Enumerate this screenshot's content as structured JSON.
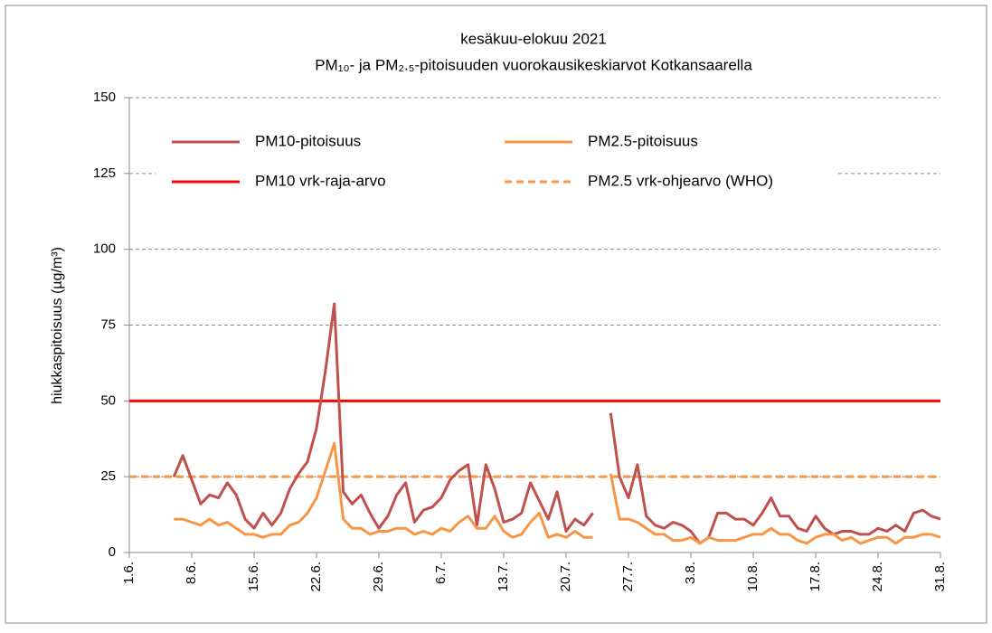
{
  "chart_data": {
    "type": "line",
    "title": "kesäkuu-elokuu 2021",
    "subtitle": "PM₁₀- ja PM₂.₅-pitoisuuden vuorokausikeskiarvot Kotkansaarella",
    "y_label": "hiukkaspitoisuus (µg/m³)",
    "categories": [
      "1.6.",
      null,
      null,
      null,
      null,
      null,
      null,
      "8.6.",
      null,
      null,
      null,
      null,
      null,
      null,
      "15.6.",
      null,
      null,
      null,
      null,
      null,
      null,
      "22.6.",
      null,
      null,
      null,
      null,
      null,
      null,
      "29.6.",
      null,
      null,
      null,
      null,
      null,
      null,
      "6.7.",
      null,
      null,
      null,
      null,
      null,
      null,
      "13.7.",
      null,
      null,
      null,
      null,
      null,
      null,
      "20.7.",
      null,
      null,
      null,
      null,
      null,
      null,
      "27.7.",
      null,
      null,
      null,
      null,
      null,
      null,
      "3.8.",
      null,
      null,
      null,
      null,
      null,
      null,
      "10.8.",
      null,
      null,
      null,
      null,
      null,
      null,
      "17.8.",
      null,
      null,
      null,
      null,
      null,
      null,
      "24.8.",
      null,
      null,
      null,
      null,
      null,
      null,
      "31.8."
    ],
    "series": [
      {
        "name": "PM10-pitoisuus",
        "color": "#c0504d",
        "values": [
          null,
          null,
          null,
          null,
          null,
          25,
          32,
          24,
          16,
          19,
          18,
          23,
          19,
          11,
          8,
          13,
          9,
          13,
          21,
          26,
          30,
          41,
          60,
          82,
          20,
          16,
          19,
          13,
          8,
          12,
          19,
          23,
          10,
          14,
          15,
          18,
          24,
          27,
          29,
          9,
          29,
          21,
          10,
          11,
          13,
          23,
          17,
          11,
          20,
          7,
          11,
          9,
          13,
          null,
          46,
          25,
          18,
          29,
          12,
          9,
          8,
          10,
          9,
          7,
          3,
          5,
          13,
          13,
          11,
          11,
          9,
          13,
          18,
          12,
          12,
          8,
          7,
          12,
          8,
          6,
          7,
          7,
          6,
          6,
          8,
          7,
          9,
          7,
          13,
          14,
          12,
          11
        ]
      },
      {
        "name": "PM2.5-pitoisuus",
        "color": "#f79646",
        "values": [
          null,
          null,
          null,
          null,
          null,
          11,
          11,
          10,
          9,
          11,
          9,
          10,
          8,
          6,
          6,
          5,
          6,
          6,
          9,
          10,
          13,
          18,
          27,
          36,
          11,
          8,
          8,
          6,
          7,
          7,
          8,
          8,
          6,
          7,
          6,
          8,
          7,
          10,
          12,
          8,
          8,
          12,
          7,
          5,
          6,
          10,
          13,
          5,
          6,
          5,
          7,
          5,
          5,
          null,
          26,
          11,
          11,
          10,
          8,
          6,
          6,
          4,
          4,
          5,
          3,
          5,
          4,
          4,
          4,
          5,
          6,
          6,
          8,
          6,
          6,
          4,
          3,
          5,
          6,
          6,
          4,
          5,
          3,
          4,
          5,
          5,
          3,
          5,
          5,
          6,
          6,
          5
        ]
      }
    ],
    "reference_lines": [
      {
        "name": "PM10 vrk-raja-arvo",
        "value": 50,
        "color": "#ff0000",
        "dashed": false
      },
      {
        "name": "PM2.5 vrk-ohjearvo (WHO)",
        "value": 25,
        "color": "#f79646",
        "dashed": true
      }
    ],
    "ylim": [
      0,
      150
    ],
    "yticks": [
      0,
      25,
      50,
      75,
      100,
      125,
      150
    ],
    "grid": true
  }
}
